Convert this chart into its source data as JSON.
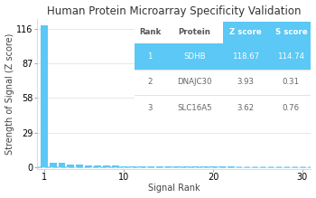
{
  "title": "Human Protein Microarray Specificity Validation",
  "xlabel": "Signal Rank",
  "ylabel": "Strength of Signal (Z score)",
  "bar_x": [
    1,
    2,
    3,
    4,
    5,
    6,
    7,
    8,
    9,
    10,
    11,
    12,
    13,
    14,
    15,
    16,
    17,
    18,
    19,
    20,
    21,
    22,
    23,
    24,
    25,
    26,
    27,
    28,
    29,
    30
  ],
  "bar_y": [
    118.67,
    3.93,
    3.62,
    2.5,
    2.1,
    1.9,
    1.7,
    1.5,
    1.3,
    1.1,
    1.0,
    0.9,
    0.85,
    0.8,
    0.75,
    0.7,
    0.67,
    0.64,
    0.61,
    0.58,
    0.55,
    0.52,
    0.5,
    0.48,
    0.46,
    0.44,
    0.42,
    0.4,
    0.38,
    0.36
  ],
  "bar_color": "#5bc8f5",
  "yticks": [
    0,
    29,
    58,
    87,
    116
  ],
  "xticks": [
    1,
    10,
    20,
    30
  ],
  "xlim": [
    0.2,
    31
  ],
  "ylim": [
    -1,
    124
  ],
  "table_data": [
    [
      "1",
      "SDHB",
      "118.67",
      "114.74"
    ],
    [
      "2",
      "DNAJC30",
      "3.93",
      "0.31"
    ],
    [
      "3",
      "SLC16A5",
      "3.62",
      "0.76"
    ]
  ],
  "table_headers": [
    "Rank",
    "Protein",
    "Z score",
    "S score"
  ],
  "header_highlight_cols": [
    2,
    3
  ],
  "row1_highlight": true,
  "table_highlight_color": "#5bc8f5",
  "table_normal_text": "#666666",
  "table_header_text": "#555555",
  "row1_text_color": "#5bc8f5",
  "title_fontsize": 8.5,
  "axis_fontsize": 7,
  "tick_fontsize": 7,
  "table_fontsize": 6.2,
  "background_color": "#ffffff",
  "grid_color": "#dddddd",
  "dashed_line_color": "#5bc8f5"
}
